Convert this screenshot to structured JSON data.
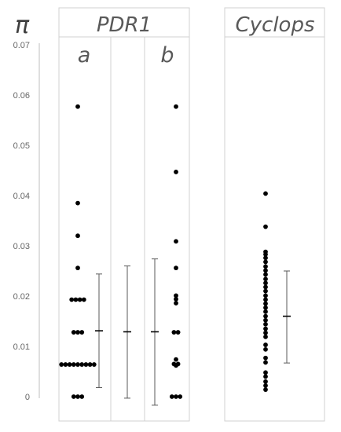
{
  "chart_data": {
    "type": "scatter",
    "ylabel": "π",
    "ylim": [
      0,
      0.07
    ],
    "y_ticks": [
      "0",
      "0.01",
      "0.02",
      "0.03",
      "0.04",
      "0.05",
      "0.06",
      "0.07"
    ],
    "group_header": "PDR1",
    "sub_labels": [
      "a",
      "b"
    ],
    "grid": false,
    "series": [
      {
        "name": "a",
        "points": [
          {
            "y": 0.0577,
            "n": 1
          },
          {
            "y": 0.0385,
            "n": 1
          },
          {
            "y": 0.032,
            "n": 1
          },
          {
            "y": 0.0256,
            "n": 1
          },
          {
            "y": 0.0193,
            "n": 4
          },
          {
            "y": 0.0128,
            "n": 3
          },
          {
            "y": 0.0064,
            "n": 9
          },
          {
            "y": 0.0,
            "n": 3
          }
        ],
        "error_bar": {
          "mean": 0.0131,
          "low": 0.0018,
          "high": 0.0244
        }
      },
      {
        "name": "PDR1",
        "points": [],
        "error_bar": {
          "mean": 0.0129,
          "low": -0.0003,
          "high": 0.026
        }
      },
      {
        "name": "b",
        "points": [
          {
            "y": 0.0577,
            "n": 1
          },
          {
            "y": 0.0447,
            "n": 1
          },
          {
            "y": 0.0309,
            "n": 1
          },
          {
            "y": 0.0256,
            "n": 1
          },
          {
            "y": 0.0201,
            "n": 1
          },
          {
            "y": 0.0194,
            "n": 1
          },
          {
            "y": 0.0186,
            "n": 1
          },
          {
            "y": 0.0128,
            "n": 2
          },
          {
            "y": 0.0074,
            "n": 1
          },
          {
            "y": 0.0065,
            "n": 2
          },
          {
            "y": 0.0062,
            "n": 1
          },
          {
            "y": 0.0,
            "n": 3
          }
        ],
        "error_bar": {
          "mean": 0.0129,
          "low": -0.0017,
          "high": 0.0274
        }
      },
      {
        "name": "Cyclops",
        "points": [
          {
            "y": 0.0404,
            "n": 1
          },
          {
            "y": 0.0338,
            "n": 1
          },
          {
            "y": 0.0288,
            "n": 1
          },
          {
            "y": 0.0283,
            "n": 1
          },
          {
            "y": 0.0276,
            "n": 1
          },
          {
            "y": 0.0268,
            "n": 1
          },
          {
            "y": 0.0259,
            "n": 1
          },
          {
            "y": 0.0251,
            "n": 1
          },
          {
            "y": 0.0243,
            "n": 1
          },
          {
            "y": 0.0234,
            "n": 1
          },
          {
            "y": 0.0226,
            "n": 1
          },
          {
            "y": 0.0218,
            "n": 1
          },
          {
            "y": 0.021,
            "n": 1
          },
          {
            "y": 0.0201,
            "n": 1
          },
          {
            "y": 0.0193,
            "n": 1
          },
          {
            "y": 0.0185,
            "n": 1
          },
          {
            "y": 0.0177,
            "n": 1
          },
          {
            "y": 0.0169,
            "n": 1
          },
          {
            "y": 0.016,
            "n": 1
          },
          {
            "y": 0.0152,
            "n": 1
          },
          {
            "y": 0.0144,
            "n": 1
          },
          {
            "y": 0.0135,
            "n": 1
          },
          {
            "y": 0.0127,
            "n": 1
          },
          {
            "y": 0.0119,
            "n": 1
          },
          {
            "y": 0.0103,
            "n": 1
          },
          {
            "y": 0.0094,
            "n": 1
          },
          {
            "y": 0.0077,
            "n": 1
          },
          {
            "y": 0.0068,
            "n": 1
          },
          {
            "y": 0.0048,
            "n": 1
          },
          {
            "y": 0.004,
            "n": 1
          },
          {
            "y": 0.003,
            "n": 1
          },
          {
            "y": 0.0022,
            "n": 1
          },
          {
            "y": 0.0014,
            "n": 1
          }
        ],
        "error_bar": {
          "mean": 0.016,
          "low": 0.0067,
          "high": 0.025
        }
      }
    ],
    "colors": {
      "points": "#000000",
      "error_bars": "#595959",
      "panel_border": "#d0d0d0",
      "text": "#595959"
    }
  }
}
